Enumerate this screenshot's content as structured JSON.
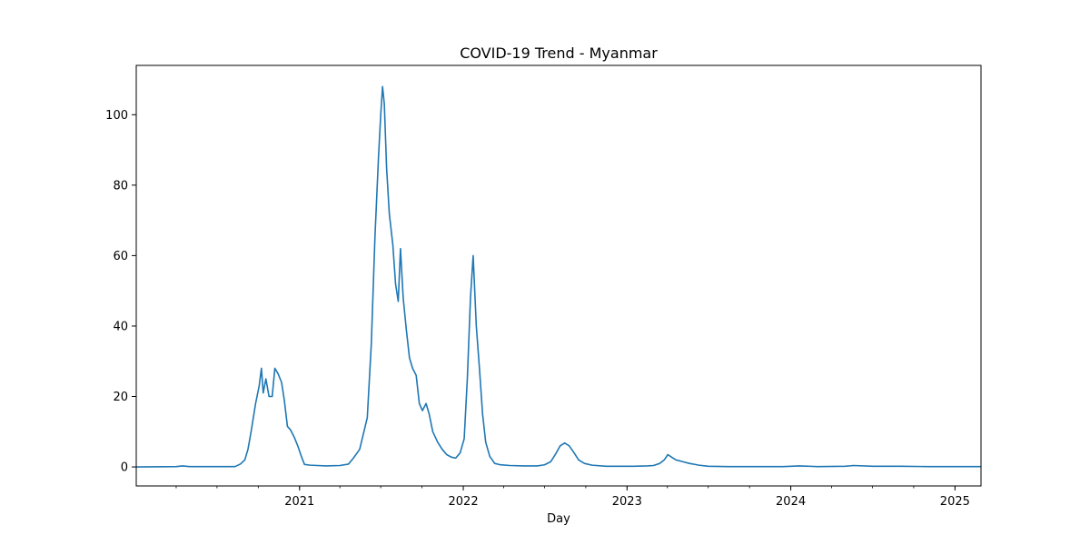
{
  "chart_data": {
    "type": "line",
    "title": "COVID-19 Trend - Myanmar",
    "xlabel": "Day",
    "ylabel": "",
    "xlim": [
      "2020-01-03",
      "2025-02-28"
    ],
    "ylim": [
      -5.4,
      114
    ],
    "x_ticks": [
      {
        "date": "2021-01-01",
        "label": "2021"
      },
      {
        "date": "2022-01-01",
        "label": "2022"
      },
      {
        "date": "2023-01-01",
        "label": "2023"
      },
      {
        "date": "2024-01-01",
        "label": "2024"
      },
      {
        "date": "2025-01-01",
        "label": "2025"
      }
    ],
    "y_ticks": [
      0,
      20,
      40,
      60,
      80,
      100
    ],
    "grid": false,
    "legend": "none",
    "series": [
      {
        "color": "#1f77b4",
        "points": [
          [
            "2020-01-03",
            0
          ],
          [
            "2020-04-01",
            0.1
          ],
          [
            "2020-04-15",
            0.3
          ],
          [
            "2020-05-01",
            0.1
          ],
          [
            "2020-06-01",
            0.1
          ],
          [
            "2020-07-01",
            0.1
          ],
          [
            "2020-08-10",
            0.1
          ],
          [
            "2020-08-22",
            0.8
          ],
          [
            "2020-09-01",
            2
          ],
          [
            "2020-09-08",
            5
          ],
          [
            "2020-09-15",
            10
          ],
          [
            "2020-09-25",
            18
          ],
          [
            "2020-10-03",
            23
          ],
          [
            "2020-10-08",
            28
          ],
          [
            "2020-10-12",
            21
          ],
          [
            "2020-10-18",
            25
          ],
          [
            "2020-10-25",
            20
          ],
          [
            "2020-11-01",
            20
          ],
          [
            "2020-11-07",
            28
          ],
          [
            "2020-11-14",
            26.5
          ],
          [
            "2020-11-22",
            24
          ],
          [
            "2020-11-28",
            19
          ],
          [
            "2020-12-05",
            11.5
          ],
          [
            "2020-12-12",
            10.5
          ],
          [
            "2020-12-20",
            8.5
          ],
          [
            "2020-12-28",
            6
          ],
          [
            "2021-01-05",
            3
          ],
          [
            "2021-01-12",
            0.7
          ],
          [
            "2021-01-25",
            0.5
          ],
          [
            "2021-02-10",
            0.4
          ],
          [
            "2021-03-01",
            0.3
          ],
          [
            "2021-04-01",
            0.4
          ],
          [
            "2021-04-20",
            0.8
          ],
          [
            "2021-05-01",
            2.5
          ],
          [
            "2021-05-15",
            5
          ],
          [
            "2021-06-01",
            14
          ],
          [
            "2021-06-10",
            35
          ],
          [
            "2021-06-18",
            65
          ],
          [
            "2021-06-26",
            88
          ],
          [
            "2021-07-01",
            100
          ],
          [
            "2021-07-05",
            108
          ],
          [
            "2021-07-09",
            103
          ],
          [
            "2021-07-14",
            85
          ],
          [
            "2021-07-20",
            72
          ],
          [
            "2021-07-28",
            63
          ],
          [
            "2021-08-03",
            52
          ],
          [
            "2021-08-09",
            47
          ],
          [
            "2021-08-14",
            62
          ],
          [
            "2021-08-20",
            48
          ],
          [
            "2021-08-27",
            39
          ],
          [
            "2021-09-03",
            31
          ],
          [
            "2021-09-10",
            28
          ],
          [
            "2021-09-18",
            26
          ],
          [
            "2021-09-25",
            18
          ],
          [
            "2021-10-02",
            16
          ],
          [
            "2021-10-10",
            18
          ],
          [
            "2021-10-17",
            15
          ],
          [
            "2021-10-25",
            10
          ],
          [
            "2021-11-05",
            7
          ],
          [
            "2021-11-15",
            5
          ],
          [
            "2021-11-25",
            3.5
          ],
          [
            "2021-12-05",
            2.8
          ],
          [
            "2021-12-15",
            2.5
          ],
          [
            "2021-12-25",
            4
          ],
          [
            "2022-01-03",
            8
          ],
          [
            "2022-01-10",
            25
          ],
          [
            "2022-01-17",
            48
          ],
          [
            "2022-01-23",
            60
          ],
          [
            "2022-01-30",
            40
          ],
          [
            "2022-02-06",
            28
          ],
          [
            "2022-02-13",
            15
          ],
          [
            "2022-02-20",
            7
          ],
          [
            "2022-03-01",
            3
          ],
          [
            "2022-03-12",
            1
          ],
          [
            "2022-03-25",
            0.6
          ],
          [
            "2022-04-15",
            0.4
          ],
          [
            "2022-05-15",
            0.3
          ],
          [
            "2022-06-15",
            0.3
          ],
          [
            "2022-07-01",
            0.6
          ],
          [
            "2022-07-15",
            1.5
          ],
          [
            "2022-07-25",
            3.5
          ],
          [
            "2022-08-05",
            6
          ],
          [
            "2022-08-15",
            6.8
          ],
          [
            "2022-08-25",
            6
          ],
          [
            "2022-09-05",
            4
          ],
          [
            "2022-09-15",
            2
          ],
          [
            "2022-09-28",
            1
          ],
          [
            "2022-10-15",
            0.5
          ],
          [
            "2022-11-15",
            0.2
          ],
          [
            "2022-12-15",
            0.2
          ],
          [
            "2023-01-15",
            0.2
          ],
          [
            "2023-02-15",
            0.3
          ],
          [
            "2023-03-01",
            0.4
          ],
          [
            "2023-03-15",
            1
          ],
          [
            "2023-03-25",
            2
          ],
          [
            "2023-04-02",
            3.5
          ],
          [
            "2023-04-10",
            2.8
          ],
          [
            "2023-04-20",
            2
          ],
          [
            "2023-05-05",
            1.5
          ],
          [
            "2023-05-20",
            1
          ],
          [
            "2023-06-10",
            0.5
          ],
          [
            "2023-07-01",
            0.2
          ],
          [
            "2023-08-15",
            0.1
          ],
          [
            "2023-10-15",
            0.1
          ],
          [
            "2023-12-15",
            0.1
          ],
          [
            "2024-01-20",
            0.3
          ],
          [
            "2024-03-01",
            0.1
          ],
          [
            "2024-05-01",
            0.2
          ],
          [
            "2024-05-20",
            0.4
          ],
          [
            "2024-07-01",
            0.2
          ],
          [
            "2024-09-01",
            0.2
          ],
          [
            "2024-11-01",
            0.1
          ],
          [
            "2025-01-01",
            0.1
          ],
          [
            "2025-02-28",
            0.1
          ]
        ]
      }
    ]
  }
}
